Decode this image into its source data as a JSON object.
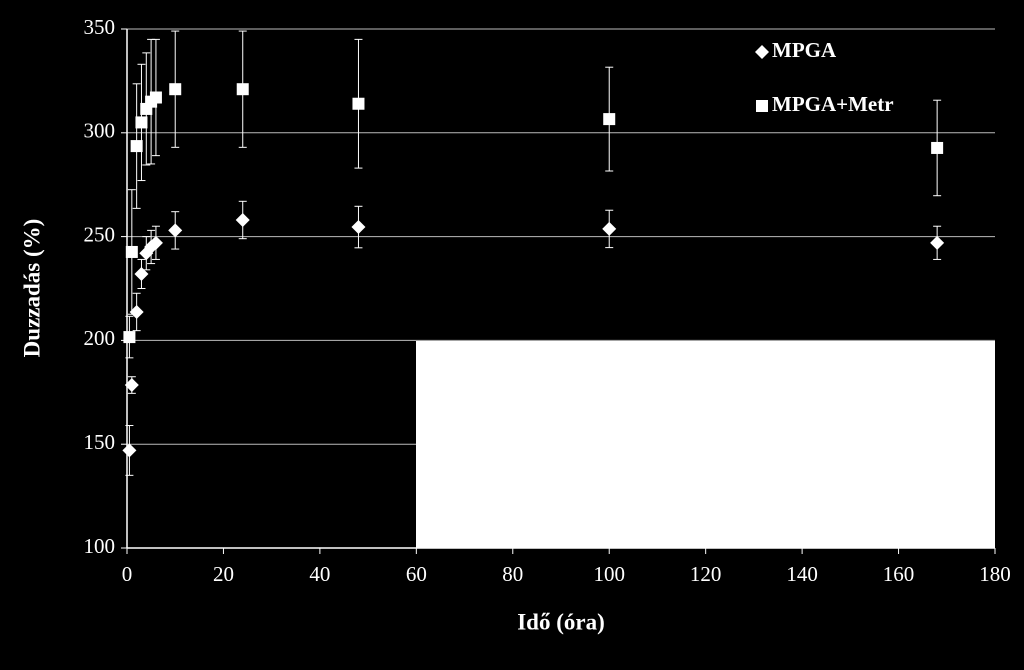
{
  "chart_data": {
    "type": "scatter",
    "x_label": "Idő (óra)",
    "y_label": "Duzzadás (%)",
    "x": [
      0.5,
      1,
      2,
      3,
      4,
      5,
      6,
      10,
      24,
      48,
      100,
      168
    ],
    "series": [
      {
        "name": "MPGA",
        "color": "#ffffff",
        "marker": "diamond",
        "values": [
          147,
          178.5,
          213.7,
          232,
          242,
          245,
          247,
          253,
          258,
          254.6,
          253.7,
          247
        ],
        "errors": [
          12,
          4,
          9,
          7,
          8,
          8,
          8,
          9,
          9,
          10,
          9,
          8
        ]
      },
      {
        "name": "MPGA+Metr",
        "color": "#ffffff",
        "marker": "square",
        "values": [
          201.6,
          242.6,
          293.6,
          305,
          311.5,
          315,
          317,
          321,
          321,
          314,
          306.6,
          292.7
        ],
        "errors": [
          10,
          30,
          30,
          28,
          27,
          30,
          28,
          28,
          28,
          31,
          25,
          23
        ]
      }
    ],
    "xlim": [
      0,
      180
    ],
    "xticks": [
      0,
      20,
      40,
      60,
      80,
      100,
      120,
      140,
      160,
      180
    ],
    "ylim": [
      100,
      350
    ],
    "yticks": [
      100,
      150,
      200,
      250,
      300,
      350
    ],
    "grid": true,
    "legend": "top-right"
  }
}
